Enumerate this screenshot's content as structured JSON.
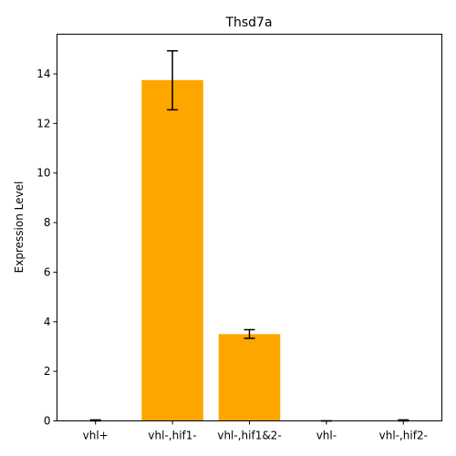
{
  "chart_data": {
    "type": "bar",
    "title": "Thsd7a",
    "xlabel": "",
    "ylabel": "Expression Level",
    "categories": [
      "vhl+",
      "vhl-,hif1-",
      "vhl-,hif1&2-",
      "vhl-",
      "vhl-,hif2-"
    ],
    "values": [
      0.02,
      13.75,
      3.5,
      0.0,
      0.02
    ],
    "error_low": [
      0.0,
      12.55,
      3.33,
      0.0,
      0.0
    ],
    "error_high": [
      0.04,
      14.93,
      3.68,
      0.0,
      0.04
    ],
    "ylim": [
      0,
      15.6
    ],
    "yticks": [
      0,
      2,
      4,
      6,
      8,
      10,
      12,
      14
    ],
    "bar_color": "#ffa500",
    "grid": false
  }
}
